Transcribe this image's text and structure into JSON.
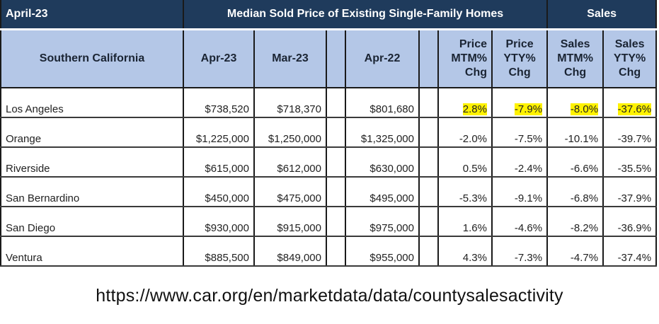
{
  "band": {
    "date": "April-23",
    "title": "Median Sold Price of Existing Single-Family Homes",
    "sales": "Sales"
  },
  "headers": {
    "region": "Southern California",
    "apr23": "Apr-23",
    "mar23": "Mar-23",
    "apr22": "Apr-22",
    "price_mtm": "Price MTM% Chg",
    "price_yty": "Price YTY% Chg",
    "sales_mtm": "Sales MTM% Chg",
    "sales_yty": "Sales YTY% Chg"
  },
  "rows": [
    {
      "name": "Los Angeles",
      "apr23": "$738,520",
      "mar23": "$718,370",
      "apr22": "$801,680",
      "price_mtm": "2.8%",
      "price_yty": "-7.9%",
      "sales_mtm": "-8.0%",
      "sales_yty": "-37.6%"
    },
    {
      "name": "Orange",
      "apr23": "$1,225,000",
      "mar23": "$1,250,000",
      "apr22": "$1,325,000",
      "price_mtm": "-2.0%",
      "price_yty": "-7.5%",
      "sales_mtm": "-10.1%",
      "sales_yty": "-39.7%"
    },
    {
      "name": "Riverside",
      "apr23": "$615,000",
      "mar23": "$612,000",
      "apr22": "$630,000",
      "price_mtm": "0.5%",
      "price_yty": "-2.4%",
      "sales_mtm": "-6.6%",
      "sales_yty": "-35.5%"
    },
    {
      "name": "San Bernardino",
      "apr23": "$450,000",
      "mar23": "$475,000",
      "apr22": "$495,000",
      "price_mtm": "-5.3%",
      "price_yty": "-9.1%",
      "sales_mtm": "-6.8%",
      "sales_yty": "-37.9%"
    },
    {
      "name": "San Diego",
      "apr23": "$930,000",
      "mar23": "$915,000",
      "apr22": "$975,000",
      "price_mtm": "1.6%",
      "price_yty": "-4.6%",
      "sales_mtm": "-8.2%",
      "sales_yty": "-36.9%"
    },
    {
      "name": "Ventura",
      "apr23": "$885,500",
      "mar23": "$849,000",
      "apr22": "$955,000",
      "price_mtm": "4.3%",
      "price_yty": "-7.3%",
      "sales_mtm": "-4.7%",
      "sales_yty": "-37.4%"
    }
  ],
  "highlight_color": "#fff200",
  "header_band_color": "#1f3b5c",
  "header_row_color": "#b4c7e7",
  "source_url": "https://www.car.org/en/marketdata/data/countysalesactivity"
}
